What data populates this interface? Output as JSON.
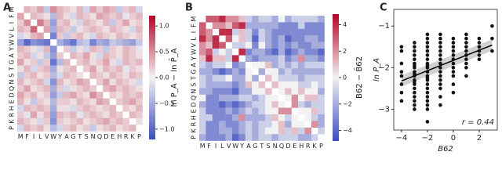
{
  "chart_data": [
    {
      "type": "heatmap",
      "panel_label": "A",
      "colorbar_label": "ln P_A − ln P̄_A",
      "categories": [
        "M",
        "F",
        "I",
        "L",
        "V",
        "W",
        "Y",
        "A",
        "G",
        "T",
        "S",
        "N",
        "Q",
        "D",
        "E",
        "H",
        "R",
        "K",
        "P"
      ],
      "cmap": [
        "#3b4cc0",
        "#f2f2f2",
        "#b40426"
      ],
      "clim": [
        -1.2,
        1.2
      ],
      "cticks": [
        {
          "value": 1.0,
          "label": "1.0"
        },
        0.5,
        {
          "value": 0.0,
          "label": "0.0"
        },
        {
          "value": -0.5,
          "label": "−0.5"
        },
        {
          "value": -1.0,
          "label": "−1.0"
        }
      ],
      "matrix": [
        [
          null,
          0.3,
          0.2,
          0.4,
          -0.3,
          0.5,
          0.3,
          0.2,
          0.1,
          0.3,
          -0.2,
          0.4,
          0.2,
          0.4,
          0.3,
          -0.3,
          0.2,
          0.3,
          -0.2
        ],
        [
          0.4,
          null,
          0.3,
          0.2,
          0.1,
          -0.4,
          0.3,
          0.1,
          -0.2,
          0.3,
          0.2,
          0.1,
          0.4,
          0.3,
          0.2,
          0.3,
          -0.1,
          0.2,
          0.3
        ],
        [
          0.2,
          0.5,
          null,
          0.6,
          0.3,
          -0.6,
          0.2,
          0.3,
          0.1,
          -0.2,
          0.3,
          0.2,
          0.1,
          0.3,
          -0.3,
          0.2,
          0.4,
          0.1,
          0.2
        ],
        [
          0.3,
          0.2,
          0.7,
          null,
          0.4,
          -0.5,
          0.3,
          0.2,
          -0.3,
          0.1,
          0.2,
          0.3,
          0.2,
          0.1,
          0.3,
          0.2,
          0.1,
          -0.2,
          0.3
        ],
        [
          -0.2,
          0.1,
          0.3,
          0.4,
          null,
          -0.8,
          0.2,
          -0.3,
          0.2,
          0.3,
          0.1,
          -0.2,
          0.3,
          0.2,
          0.1,
          0.3,
          0.2,
          0.1,
          0.2
        ],
        [
          -0.6,
          -1.0,
          -0.7,
          -0.8,
          -0.9,
          null,
          -0.5,
          -0.7,
          -0.9,
          -0.4,
          -0.3,
          -0.8,
          -0.5,
          -0.6,
          -0.3,
          -0.4,
          -0.5,
          -0.6,
          -0.3
        ],
        [
          0.3,
          0.2,
          0.1,
          -0.2,
          0.3,
          -0.7,
          null,
          0.2,
          -0.3,
          0.1,
          -0.2,
          0.3,
          0.2,
          -0.3,
          0.2,
          0.1,
          0.3,
          0.2,
          -0.1
        ],
        [
          0.2,
          0.3,
          -0.2,
          0.1,
          -0.3,
          -0.6,
          0.2,
          null,
          0.3,
          0.2,
          0.4,
          0.1,
          -0.2,
          0.3,
          0.2,
          0.1,
          0.3,
          0.2,
          0.1
        ],
        [
          0.4,
          0.1,
          0.2,
          -0.3,
          0.2,
          -0.9,
          -0.4,
          0.3,
          null,
          0.2,
          0.3,
          0.1,
          0.2,
          0.4,
          0.1,
          -0.2,
          0.3,
          0.2,
          0.3
        ],
        [
          0.1,
          0.3,
          -0.2,
          0.2,
          0.3,
          -0.5,
          0.1,
          0.2,
          0.3,
          null,
          0.2,
          0.4,
          0.1,
          0.3,
          0.2,
          0.3,
          -0.1,
          0.2,
          0.1
        ],
        [
          -0.3,
          0.2,
          0.3,
          0.1,
          0.2,
          -0.4,
          -0.2,
          0.3,
          0.2,
          0.1,
          null,
          0.3,
          0.2,
          0.1,
          0.3,
          0.2,
          0.1,
          0.3,
          0.2
        ],
        [
          0.3,
          0.1,
          0.2,
          0.3,
          -0.2,
          -0.7,
          0.3,
          0.1,
          0.2,
          0.4,
          0.3,
          null,
          0.2,
          0.4,
          0.1,
          0.3,
          0.2,
          0.1,
          -0.2
        ],
        [
          0.2,
          0.4,
          0.1,
          0.2,
          0.3,
          -0.5,
          0.2,
          -0.2,
          0.1,
          0.2,
          0.3,
          0.2,
          null,
          0.3,
          0.4,
          0.2,
          0.3,
          0.2,
          0.1
        ],
        [
          0.4,
          0.2,
          0.3,
          0.1,
          0.2,
          -0.6,
          -0.3,
          0.3,
          0.4,
          0.2,
          0.1,
          0.5,
          0.3,
          null,
          0.2,
          0.1,
          0.3,
          0.2,
          0.3
        ],
        [
          0.3,
          0.1,
          -0.3,
          0.2,
          0.1,
          -0.4,
          0.2,
          0.2,
          0.1,
          0.3,
          0.2,
          0.1,
          0.4,
          0.3,
          null,
          0.2,
          0.3,
          0.4,
          0.2
        ],
        [
          -0.2,
          0.3,
          0.2,
          0.3,
          0.2,
          -0.5,
          0.1,
          0.1,
          -0.2,
          0.2,
          0.3,
          0.2,
          0.1,
          0.2,
          0.3,
          null,
          0.2,
          0.1,
          0.3
        ],
        [
          0.2,
          -0.1,
          0.4,
          0.1,
          0.3,
          -0.6,
          0.3,
          0.2,
          0.3,
          -0.1,
          0.2,
          0.3,
          0.2,
          0.1,
          0.3,
          0.2,
          null,
          0.3,
          0.2
        ],
        [
          0.3,
          0.2,
          0.1,
          -0.2,
          0.2,
          -0.7,
          0.2,
          0.1,
          0.2,
          0.3,
          0.1,
          0.2,
          0.3,
          0.4,
          0.2,
          0.3,
          0.2,
          null,
          0.1
        ],
        [
          -0.2,
          0.3,
          0.2,
          0.3,
          0.1,
          -0.4,
          -0.2,
          0.2,
          0.3,
          0.1,
          0.2,
          -0.3,
          0.1,
          0.2,
          0.3,
          0.1,
          0.2,
          0.3,
          null
        ]
      ]
    },
    {
      "type": "heatmap",
      "panel_label": "B",
      "colorbar_label": "B62 − B̄62",
      "categories": [
        "M",
        "F",
        "I",
        "L",
        "V",
        "W",
        "Y",
        "A",
        "G",
        "T",
        "S",
        "N",
        "Q",
        "D",
        "E",
        "H",
        "R",
        "K",
        "P"
      ],
      "cmap": [
        "#3b4cc0",
        "#f2f2f2",
        "#b40426"
      ],
      "clim": [
        -4.8,
        4.8
      ],
      "cticks": [
        4,
        2,
        0,
        {
          "value": -2,
          "label": "−2"
        },
        {
          "value": -4,
          "label": "−4"
        }
      ],
      "matrix": [
        [
          null,
          3,
          3,
          4,
          2,
          2,
          1,
          -1,
          -2,
          -1,
          -1,
          -2,
          0,
          -2,
          -1,
          -1,
          -1,
          -1,
          -2
        ],
        [
          3,
          null,
          2,
          2,
          1,
          3,
          4,
          -2,
          -2,
          -2,
          -2,
          -2,
          -3,
          -3,
          -3,
          -1,
          -3,
          -3,
          -3
        ],
        [
          3,
          2,
          null,
          4,
          4,
          -1,
          1,
          -1,
          -3,
          -1,
          -2,
          -3,
          -3,
          -3,
          -3,
          -3,
          -3,
          -3,
          -3
        ],
        [
          4,
          2,
          4,
          null,
          3,
          0,
          1,
          -1,
          -4,
          -1,
          -2,
          -3,
          -2,
          -4,
          -3,
          -3,
          -2,
          -2,
          -3
        ],
        [
          2,
          1,
          4,
          3,
          null,
          -1,
          -1,
          0,
          -3,
          0,
          -2,
          -3,
          -2,
          -3,
          -2,
          -3,
          -3,
          -2,
          -2
        ],
        [
          2,
          3,
          -1,
          0,
          -1,
          null,
          4,
          -3,
          -2,
          -2,
          -3,
          -4,
          -2,
          -4,
          -3,
          -2,
          -3,
          -3,
          -4
        ],
        [
          1,
          4,
          1,
          1,
          -1,
          4,
          null,
          -2,
          -3,
          -2,
          -2,
          -2,
          -1,
          -3,
          -2,
          2,
          -2,
          -2,
          -3
        ],
        [
          -1,
          -2,
          -1,
          -1,
          0,
          -3,
          -2,
          null,
          0,
          0,
          1,
          -2,
          -1,
          -2,
          -1,
          -2,
          -1,
          -1,
          -1
        ],
        [
          -2,
          -2,
          -3,
          -4,
          -3,
          -2,
          -3,
          0,
          null,
          -2,
          0,
          0,
          -2,
          -1,
          -2,
          -2,
          -2,
          -2,
          -2
        ],
        [
          -1,
          -2,
          -1,
          -1,
          0,
          -2,
          -2,
          0,
          -2,
          null,
          1,
          0,
          -1,
          -1,
          -1,
          -2,
          -1,
          -1,
          -1
        ],
        [
          -1,
          -2,
          -2,
          -2,
          -2,
          -3,
          -2,
          1,
          0,
          1,
          null,
          1,
          0,
          0,
          0,
          -1,
          -1,
          0,
          -1
        ],
        [
          -2,
          -2,
          -3,
          -3,
          -3,
          -4,
          -2,
          -2,
          0,
          0,
          1,
          null,
          0,
          1,
          0,
          1,
          0,
          0,
          -2
        ],
        [
          0,
          -3,
          -3,
          -2,
          -2,
          -2,
          -1,
          -1,
          -2,
          -1,
          0,
          0,
          null,
          0,
          2,
          0,
          1,
          1,
          -1
        ],
        [
          -2,
          -3,
          -3,
          -4,
          -3,
          -4,
          -3,
          -2,
          -1,
          -1,
          0,
          1,
          0,
          null,
          2,
          -1,
          -2,
          -1,
          -1
        ],
        [
          -1,
          -3,
          -3,
          -3,
          -2,
          -3,
          -2,
          -1,
          -2,
          -1,
          0,
          0,
          2,
          2,
          null,
          0,
          0,
          1,
          -1
        ],
        [
          -1,
          -1,
          -3,
          -3,
          -3,
          -2,
          2,
          -2,
          -2,
          -2,
          -1,
          1,
          0,
          -1,
          0,
          null,
          0,
          -1,
          -2
        ],
        [
          -1,
          -3,
          -3,
          -2,
          -3,
          -3,
          -2,
          -1,
          -2,
          -1,
          -1,
          0,
          1,
          -2,
          0,
          0,
          null,
          2,
          -2
        ],
        [
          -1,
          -3,
          -3,
          -2,
          -2,
          -3,
          -2,
          -1,
          -2,
          -1,
          0,
          0,
          1,
          -1,
          1,
          -1,
          2,
          null,
          -1
        ],
        [
          -2,
          -3,
          -3,
          -3,
          -2,
          -4,
          -3,
          -1,
          -2,
          -1,
          -1,
          -2,
          -1,
          -1,
          -1,
          -2,
          -2,
          -1,
          null
        ]
      ]
    },
    {
      "type": "scatter",
      "panel_label": "C",
      "xlabel": "B62",
      "ylabel": "ln P_A",
      "annotation": "r = 0.44",
      "color": "#111111",
      "xlim": [
        -4.6,
        3.4
      ],
      "ylim": [
        -3.5,
        -0.6
      ],
      "xticks": [
        {
          "value": -4,
          "label": "−4"
        },
        {
          "value": -2,
          "label": "−2"
        },
        0,
        2
      ],
      "yticks": [
        {
          "value": -1,
          "label": "−1"
        },
        {
          "value": -2,
          "label": "−2"
        },
        {
          "value": -3,
          "label": "−3"
        }
      ],
      "x": [
        -4,
        -4,
        -4,
        -4,
        -4,
        -4,
        -4,
        -4,
        -3,
        -3,
        -3,
        -3,
        -3,
        -3,
        -3,
        -3,
        -3,
        -3,
        -3,
        -3,
        -3,
        -3,
        -3,
        -3,
        -3,
        -3,
        -3,
        -3,
        -2,
        -2,
        -2,
        -2,
        -2,
        -2,
        -2,
        -2,
        -2,
        -2,
        -2,
        -2,
        -2,
        -2,
        -2,
        -2,
        -2,
        -2,
        -2,
        -2,
        -2,
        -2,
        -1,
        -1,
        -1,
        -1,
        -1,
        -1,
        -1,
        -1,
        -1,
        -1,
        -1,
        -1,
        -1,
        -1,
        -1,
        -1,
        0,
        0,
        0,
        0,
        0,
        0,
        0,
        0,
        0,
        0,
        0,
        0,
        1,
        1,
        1,
        1,
        1,
        1,
        1,
        1,
        1,
        1,
        2,
        2,
        2,
        2,
        2,
        2,
        3,
        3,
        3
      ],
      "y": [
        -2.8,
        -2.6,
        -2.4,
        -2.2,
        -2.1,
        -1.9,
        -1.6,
        -1.5,
        -3.0,
        -2.9,
        -2.8,
        -2.7,
        -2.6,
        -2.5,
        -2.4,
        -2.3,
        -2.2,
        -2.1,
        -2.0,
        -1.9,
        -1.8,
        -1.7,
        -1.6,
        -1.5,
        -1.4,
        -2.35,
        -2.15,
        -1.95,
        -3.3,
        -3.0,
        -2.9,
        -2.8,
        -2.7,
        -2.6,
        -2.5,
        -2.4,
        -2.3,
        -2.2,
        -2.1,
        -2.0,
        -1.9,
        -1.8,
        -1.7,
        -1.6,
        -1.5,
        -1.4,
        -1.3,
        -1.2,
        -2.25,
        -1.95,
        -2.9,
        -2.7,
        -2.5,
        -2.4,
        -2.3,
        -2.2,
        -2.1,
        -2.0,
        -1.9,
        -1.8,
        -1.7,
        -1.6,
        -1.5,
        -1.4,
        -1.3,
        -1.2,
        -2.6,
        -2.4,
        -2.2,
        -2.1,
        -2.0,
        -1.9,
        -1.8,
        -1.7,
        -1.6,
        -1.5,
        -1.4,
        -1.3,
        -2.2,
        -2.0,
        -1.9,
        -1.8,
        -1.7,
        -1.6,
        -1.5,
        -1.4,
        -1.3,
        -1.2,
        -1.8,
        -1.7,
        -1.6,
        -1.5,
        -1.4,
        -1.3,
        -1.6,
        -1.3,
        -1.0
      ]
    }
  ]
}
